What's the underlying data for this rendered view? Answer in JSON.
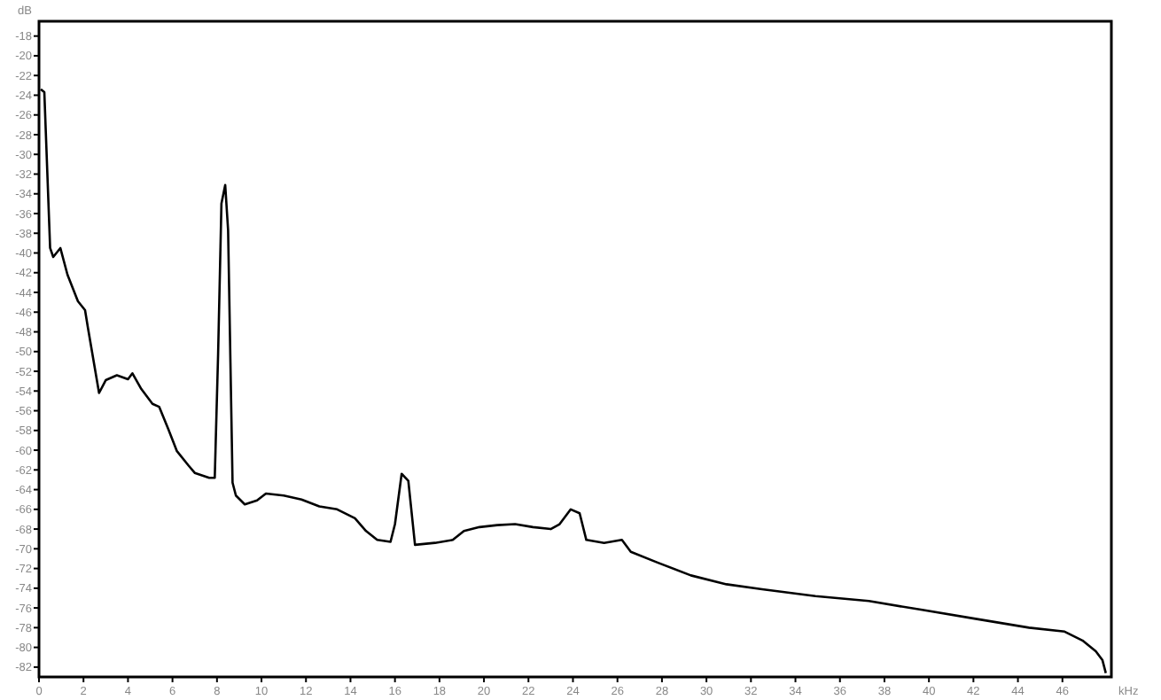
{
  "chart_data": {
    "type": "line",
    "xlabel": "kHz",
    "ylabel": "dB",
    "xlim": [
      0,
      48.2
    ],
    "ylim": [
      -83,
      -16.5
    ],
    "xticks": [
      0,
      2,
      4,
      6,
      8,
      10,
      12,
      14,
      16,
      18,
      20,
      22,
      24,
      26,
      28,
      30,
      32,
      34,
      36,
      38,
      40,
      42,
      44,
      46
    ],
    "yticks": [
      -18,
      -20,
      -22,
      -24,
      -26,
      -28,
      -30,
      -32,
      -34,
      -36,
      -38,
      -40,
      -42,
      -44,
      -46,
      -48,
      -50,
      -52,
      -54,
      -56,
      -58,
      -60,
      -62,
      -64,
      -66,
      -68,
      -70,
      -72,
      -74,
      -76,
      -78,
      -80,
      -82
    ],
    "grid": false,
    "line_style": "solid",
    "marker": "none",
    "series": [
      {
        "color": "#000000",
        "x": [
          0.08,
          0.24,
          0.5,
          0.64,
          0.96,
          1.28,
          1.75,
          2.07,
          2.2,
          2.7,
          3.0,
          3.5,
          4.0,
          4.2,
          4.6,
          5.1,
          5.4,
          5.8,
          6.2,
          6.7,
          7.0,
          7.65,
          7.9,
          8.05,
          8.2,
          8.37,
          8.5,
          8.7,
          8.85,
          9.25,
          9.8,
          10.2,
          11.0,
          11.8,
          12.6,
          13.4,
          14.2,
          14.7,
          15.2,
          15.8,
          16.0,
          16.3,
          16.6,
          16.9,
          17.8,
          18.6,
          19.1,
          19.8,
          20.6,
          21.4,
          22.2,
          23.0,
          23.4,
          23.9,
          24.3,
          24.6,
          25.4,
          26.2,
          26.6,
          27.8,
          29.3,
          30.9,
          32.5,
          34.9,
          37.3,
          39.7,
          42.1,
          44.5,
          46.1,
          46.9,
          47.5,
          47.8,
          47.95
        ],
        "values": [
          -23.4,
          -23.7,
          -39.5,
          -40.4,
          -39.5,
          -42.2,
          -44.9,
          -45.8,
          -47.6,
          -54.2,
          -52.9,
          -52.4,
          -52.8,
          -52.2,
          -53.8,
          -55.3,
          -55.6,
          -57.8,
          -60.1,
          -61.5,
          -62.3,
          -62.8,
          -62.8,
          -50.3,
          -35.0,
          -33.1,
          -37.7,
          -63.3,
          -64.6,
          -65.5,
          -65.1,
          -64.4,
          -64.6,
          -65.0,
          -65.7,
          -66.0,
          -66.9,
          -68.2,
          -69.1,
          -69.3,
          -67.5,
          -62.4,
          -63.1,
          -69.6,
          -69.4,
          -69.1,
          -68.2,
          -67.8,
          -67.6,
          -67.5,
          -67.8,
          -68.0,
          -67.5,
          -66.0,
          -66.4,
          -69.1,
          -69.4,
          -69.1,
          -70.3,
          -71.4,
          -72.7,
          -73.6,
          -74.1,
          -74.8,
          -75.3,
          -76.2,
          -77.1,
          -78.0,
          -78.4,
          -79.3,
          -80.4,
          -81.3,
          -82.6
        ]
      }
    ]
  }
}
